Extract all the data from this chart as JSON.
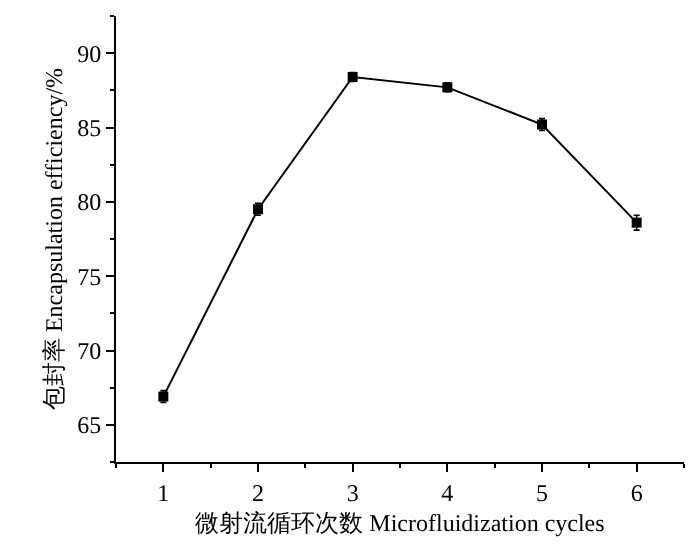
{
  "chart_data": {
    "type": "line",
    "xlabel": "微射流循环次数 Microfluidization cycles",
    "ylabel": "包封率 Encapsulation efficiency/%",
    "x": [
      1,
      2,
      3,
      4,
      5,
      6
    ],
    "series": [
      {
        "color": "#000000",
        "values": [
          66.9,
          79.5,
          88.4,
          87.7,
          85.2,
          78.6
        ],
        "errors": [
          0.4,
          0.4,
          0.3,
          0.3,
          0.4,
          0.5
        ]
      }
    ],
    "xlim": [
      0.5,
      6.5
    ],
    "xticks": [
      1,
      2,
      3,
      4,
      5,
      6
    ],
    "ylim": [
      62.5,
      92.5
    ],
    "yticks": [
      65,
      70,
      75,
      80,
      85,
      90
    ],
    "marker": "square",
    "line_style": "solid"
  }
}
